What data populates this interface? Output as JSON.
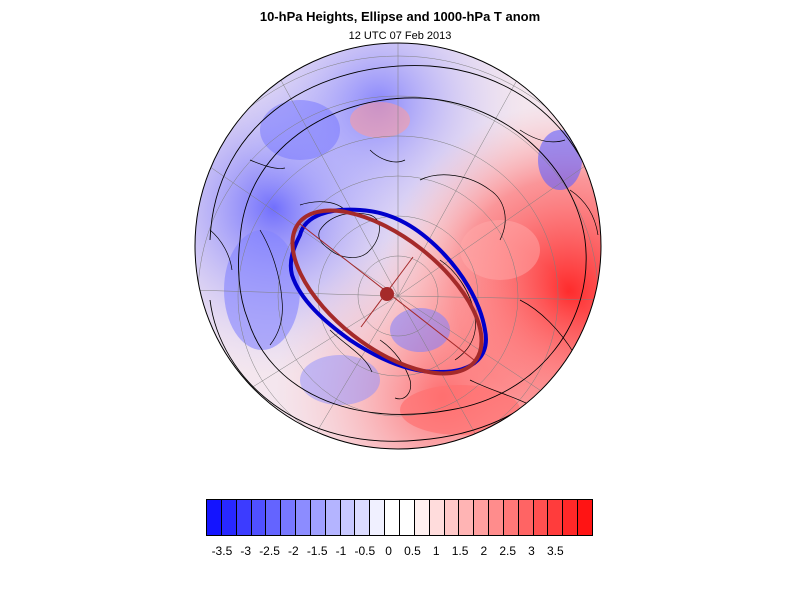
{
  "title": "10-hPa Heights, Ellipse and 1000-hPa T anom",
  "subtitle": "12 UTC 07 Feb 2013",
  "map": {
    "projection": "north-polar-stereographic",
    "ocean_color": "#ffffff",
    "coastline_color": "#000000",
    "vortex_edge_color": "#0000cc",
    "ellipse_color": "#a52a2a"
  },
  "colorbar": {
    "ticks": [
      "-3.5",
      "-3",
      "-2.5",
      "-2",
      "-1.5",
      "-1",
      "-0.5",
      "0",
      "0.5",
      "1",
      "1.5",
      "2",
      "2.5",
      "3",
      "3.5"
    ],
    "colors": [
      "#1414ff",
      "#2828ff",
      "#3c3cff",
      "#5050ff",
      "#6464ff",
      "#7878ff",
      "#8c8cff",
      "#a0a0ff",
      "#b4b4ff",
      "#c8c8ff",
      "#dcdcff",
      "#f0f0ff",
      "#ffffff",
      "#ffffff",
      "#fff0f0",
      "#ffdcdc",
      "#ffc8c8",
      "#ffb4b4",
      "#ffa0a0",
      "#ff8c8c",
      "#ff7878",
      "#ff6464",
      "#ff5050",
      "#ff3c3c",
      "#ff2828",
      "#ff1414"
    ]
  }
}
